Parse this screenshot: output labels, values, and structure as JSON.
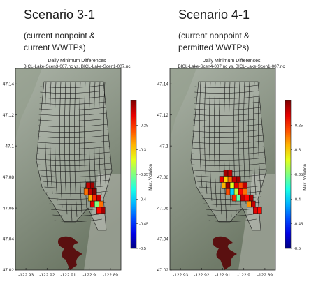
{
  "panels": [
    {
      "title": "Scenario 3-1",
      "subtitle_line1": "(current nonpoint &",
      "subtitle_line2": "current WWTPs)"
    },
    {
      "title": "Scenario 4-1",
      "subtitle_line1": "(current nonpoint &",
      "subtitle_line2": "permitted WWTPs)"
    }
  ],
  "colors": {
    "grid_line": "#1a1a1a",
    "land_light": "#aab2a6",
    "land_dark": "#6f7a68",
    "water_marker": "#5a1010",
    "colorbar_high": "#000090",
    "colorbar_low": "#800000"
  },
  "chart_data": [
    {
      "type": "heatmap",
      "title": "Daily Minimum Differences",
      "subtitle": "BICL-Lake-Scen3-007.nc vs. BICL-Lake-Scen1-007.nc",
      "xlabel": "",
      "ylabel": "",
      "colorbar_label": "Max. Violation",
      "xlim": [
        -122.935,
        -122.885
      ],
      "ylim": [
        47.02,
        47.15
      ],
      "x_ticks": [
        -122.93,
        -122.92,
        -122.91,
        -122.9,
        -122.89
      ],
      "x_tick_labels": [
        "-122.93",
        "-122.92",
        "-122.91",
        "-122.9",
        "-122.89"
      ],
      "y_ticks": [
        47.02,
        47.04,
        47.06,
        47.08,
        47.1,
        47.12,
        47.14
      ],
      "y_tick_labels": [
        "47.02",
        "47.04",
        "47.06",
        "47.08",
        "47.1",
        "47.12",
        "47.14"
      ],
      "colorbar_ticks": [
        -0.25,
        -0.3,
        -0.35,
        -0.4,
        -0.45,
        -0.5
      ],
      "colorbar_tick_labels": [
        "-0.25",
        "-0.3",
        "-0.35",
        "-0.4",
        "-0.45",
        "-0.5"
      ],
      "colorbar_range": [
        -0.5,
        -0.2
      ],
      "cells": [
        {
          "x": -122.9005,
          "y": 47.0745,
          "v": -0.22
        },
        {
          "x": -122.8985,
          "y": 47.0745,
          "v": -0.21
        },
        {
          "x": -122.9015,
          "y": 47.0705,
          "v": -0.27
        },
        {
          "x": -122.8995,
          "y": 47.0705,
          "v": -0.22
        },
        {
          "x": -122.8975,
          "y": 47.0705,
          "v": -0.2
        },
        {
          "x": -122.8995,
          "y": 47.0665,
          "v": -0.29
        },
        {
          "x": -122.8975,
          "y": 47.0665,
          "v": -0.25
        },
        {
          "x": -122.8955,
          "y": 47.0665,
          "v": -0.22
        },
        {
          "x": -122.8985,
          "y": 47.0625,
          "v": -0.23
        },
        {
          "x": -122.8965,
          "y": 47.0625,
          "v": -0.35
        },
        {
          "x": -122.8945,
          "y": 47.0625,
          "v": -0.27
        },
        {
          "x": -122.8955,
          "y": 47.0585,
          "v": -0.24
        },
        {
          "x": -122.8935,
          "y": 47.0585,
          "v": -0.21
        }
      ]
    },
    {
      "type": "heatmap",
      "title": "Daily Minimum Differences",
      "subtitle": "BICL-Lake-Scen4-007.nc vs. BICL-Lake-Scen1-007.nc",
      "xlabel": "",
      "ylabel": "",
      "colorbar_label": "Max. Violation",
      "xlim": [
        -122.935,
        -122.885
      ],
      "ylim": [
        47.02,
        47.15
      ],
      "x_ticks": [
        -122.93,
        -122.92,
        -122.91,
        -122.9,
        -122.89
      ],
      "x_tick_labels": [
        "-122.93",
        "-122.92",
        "-122.91",
        "-122.9",
        "-122.89"
      ],
      "y_ticks": [
        47.02,
        47.04,
        47.06,
        47.08,
        47.1,
        47.12,
        47.14
      ],
      "y_tick_labels": [
        "47.02",
        "47.04",
        "47.06",
        "47.08",
        "47.1",
        "47.12",
        "47.14"
      ],
      "colorbar_ticks": [
        -0.25,
        -0.3,
        -0.35,
        -0.4,
        -0.45,
        -0.5
      ],
      "colorbar_tick_labels": [
        "-0.25",
        "-0.3",
        "-0.35",
        "-0.4",
        "-0.45",
        "-0.5"
      ],
      "colorbar_range": [
        -0.5,
        -0.2
      ],
      "cells": [
        {
          "x": -122.9085,
          "y": 47.0825,
          "v": -0.21
        },
        {
          "x": -122.9065,
          "y": 47.0825,
          "v": -0.22
        },
        {
          "x": -122.9105,
          "y": 47.0785,
          "v": -0.23
        },
        {
          "x": -122.9085,
          "y": 47.0785,
          "v": -0.3
        },
        {
          "x": -122.9065,
          "y": 47.0785,
          "v": -0.27
        },
        {
          "x": -122.9045,
          "y": 47.0785,
          "v": -0.22
        },
        {
          "x": -122.9025,
          "y": 47.0785,
          "v": -0.21
        },
        {
          "x": -122.9095,
          "y": 47.0745,
          "v": -0.29
        },
        {
          "x": -122.9075,
          "y": 47.0745,
          "v": -0.21
        },
        {
          "x": -122.9055,
          "y": 47.0745,
          "v": -0.32
        },
        {
          "x": -122.9035,
          "y": 47.0745,
          "v": -0.23
        },
        {
          "x": -122.9015,
          "y": 47.0745,
          "v": -0.26
        },
        {
          "x": -122.8995,
          "y": 47.0745,
          "v": -0.22
        },
        {
          "x": -122.9075,
          "y": 47.0705,
          "v": -0.26
        },
        {
          "x": -122.9055,
          "y": 47.0705,
          "v": -0.4
        },
        {
          "x": -122.9035,
          "y": 47.0705,
          "v": -0.33
        },
        {
          "x": -122.9015,
          "y": 47.0705,
          "v": -0.24
        },
        {
          "x": -122.8995,
          "y": 47.0705,
          "v": -0.27
        },
        {
          "x": -122.9045,
          "y": 47.0665,
          "v": -0.25
        },
        {
          "x": -122.9025,
          "y": 47.0665,
          "v": -0.36
        },
        {
          "x": -122.9005,
          "y": 47.0665,
          "v": -0.22
        },
        {
          "x": -122.8985,
          "y": 47.0665,
          "v": -0.24
        },
        {
          "x": -122.8965,
          "y": 47.0665,
          "v": -0.21
        },
        {
          "x": -122.8975,
          "y": 47.0625,
          "v": -0.28
        },
        {
          "x": -122.8955,
          "y": 47.0625,
          "v": -0.22
        },
        {
          "x": -122.8945,
          "y": 47.0585,
          "v": -0.23
        },
        {
          "x": -122.8925,
          "y": 47.0585,
          "v": -0.24
        }
      ]
    }
  ]
}
